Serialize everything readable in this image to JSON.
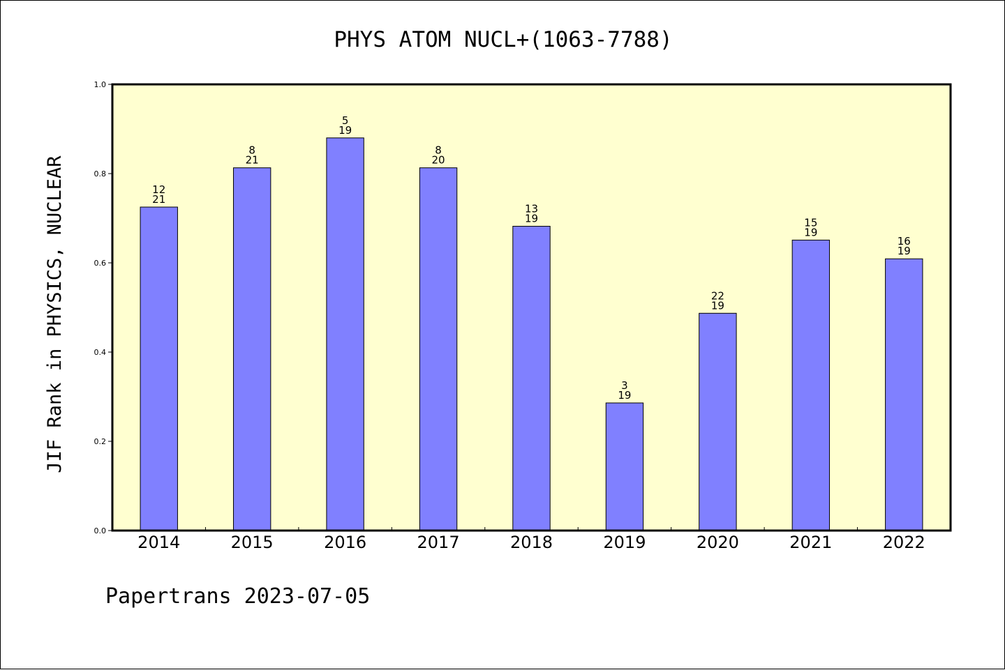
{
  "chart_data": {
    "type": "bar",
    "title": "PHYS ATOM NUCL+(1063-7788)",
    "xlabel": "",
    "ylabel": "JIF Rank in PHYSICS, NUCLEAR",
    "ylim": [
      0,
      1.0
    ],
    "y_ticks": [
      "0.0",
      "0.2",
      "0.4",
      "0.6",
      "0.8",
      "1.0"
    ],
    "categories": [
      "2014",
      "2015",
      "2016",
      "2017",
      "2018",
      "2019",
      "2020",
      "2021",
      "2022"
    ],
    "values": [
      0.725,
      0.813,
      0.88,
      0.813,
      0.682,
      0.286,
      0.487,
      0.651,
      0.609
    ],
    "bar_labels_top": [
      "12",
      "8",
      "5",
      "8",
      "13",
      "3",
      "22",
      "15",
      "16"
    ],
    "bar_labels_bottom": [
      "21",
      "21",
      "19",
      "20",
      "19",
      "19",
      "19",
      "19",
      "19"
    ],
    "grid": false,
    "colors": {
      "bar": "#8080ff",
      "plot_background": "#ffffd0"
    }
  },
  "footer": "Papertrans 2023-07-05"
}
